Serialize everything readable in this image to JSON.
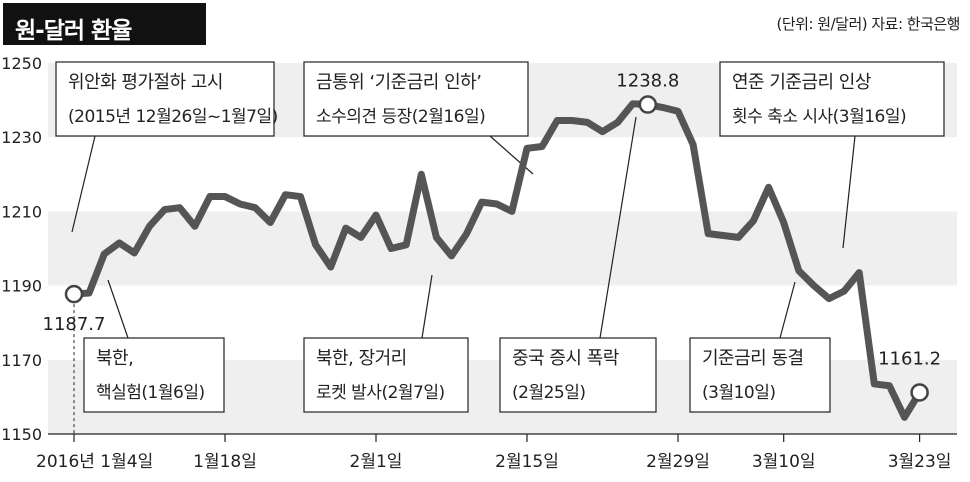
{
  "title": "원-달러 환율",
  "unit_source": "(단위: 원/달러) 자료: 한국은행",
  "chart_data": {
    "type": "line",
    "ylim": [
      1150,
      1250
    ],
    "y_ticks": [
      "1250",
      "1230",
      "1210",
      "1190",
      "1170",
      "1150"
    ],
    "x_tick_labels": [
      {
        "label": "2016년 1월4일",
        "index": 0
      },
      {
        "label": "1월18일",
        "index": 10
      },
      {
        "label": "2월1일",
        "index": 20
      },
      {
        "label": "2월15일",
        "index": 30
      },
      {
        "label": "2월29일",
        "index": 40
      },
      {
        "label": "3월10일",
        "index": 47
      },
      {
        "label": "3월23일",
        "index": 56
      }
    ],
    "series": [
      {
        "values": [
          1187.7,
          1188.0,
          1198.5,
          1201.5,
          1198.8,
          1206.0,
          1210.5,
          1211.0,
          1206.0,
          1214.0,
          1214.0,
          1212.0,
          1211.0,
          1207.0,
          1214.5,
          1214.0,
          1201.0,
          1195.0,
          1205.5,
          1203.0,
          1209.0,
          1200.0,
          1201.0,
          1220.0,
          1203.0,
          1198.0,
          1204.0,
          1212.5,
          1212.0,
          1210.0,
          1227.0,
          1227.5,
          1234.5,
          1234.5,
          1234.0,
          1231.5,
          1234.0,
          1239.0,
          1238.8,
          1238.0,
          1237.0,
          1228.0,
          1204.0,
          1203.5,
          1203.0,
          1207.5,
          1216.5,
          1207.0,
          1194.0,
          1190.0,
          1186.5,
          1188.5,
          1193.5,
          1163.5,
          1163.0,
          1154.5,
          1161.2
        ]
      }
    ],
    "value_labels": [
      {
        "text": "1187.7",
        "index": 0
      },
      {
        "text": "1238.8",
        "index": 38
      },
      {
        "text": "1161.2",
        "index": 56
      }
    ],
    "annotations": [
      {
        "lines": [
          "위안화 평가절하 고시",
          "(2015년 12월26일~1월7일)"
        ],
        "target_index": 0
      },
      {
        "lines": [
          "금통위 ‘기준금리 인하’",
          "소수의견 등장(2월16일)"
        ],
        "target_index": 30
      },
      {
        "lines": [
          "연준 기준금리 인상",
          "횟수 축소 시사(3월16일)"
        ],
        "target_index": 51
      },
      {
        "lines": [
          "북한,",
          "핵실험(1월6일)"
        ],
        "target_index": 2
      },
      {
        "lines": [
          "북한, 장거리",
          "로켓 발사(2월7일)"
        ],
        "target_index": 24
      },
      {
        "lines": [
          "중국 증시 폭락",
          "(2월25일)"
        ],
        "target_index": 38
      },
      {
        "lines": [
          "기준금리 동결",
          "(3월10일)"
        ],
        "target_index": 47
      }
    ],
    "colors": {
      "line": "#555555",
      "band": "#efefef",
      "text": "#222222"
    }
  }
}
